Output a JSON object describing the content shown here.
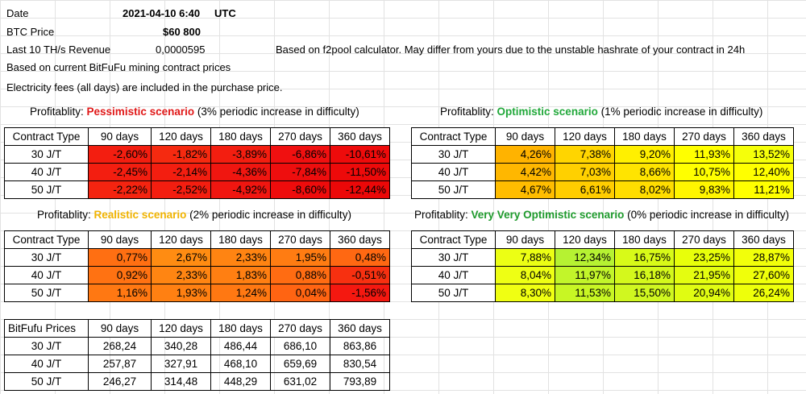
{
  "info": {
    "date_label": "Date",
    "date_value": "2021-04-10 6:40",
    "date_tz": "UTC",
    "btc_label": "BTC Price",
    "btc_value": "$60 800",
    "revenue_label": "Last 10 TH/s Revenue",
    "revenue_value": "0,0000595",
    "revenue_note": "Based on f2pool calculator. May differ from yours due to the unstable hashrate of your contract in 24h",
    "line4": "Based on current BitFuFu mining contract prices",
    "line5": "Electricity fees (all days) are included in the purchase price."
  },
  "captions": {
    "prefix": "Profitablity: ",
    "pess_name": "Pessimistic scenario",
    "pess_suffix": " (3% periodic increase in difficulty)",
    "opt_name": "Optimistic scenario",
    "opt_suffix": " (1% periodic increase in difficulty)",
    "real_name": "Realistic scenario",
    "real_suffix": " (2% periodic increase in difficulty)",
    "vvo_name": "Very Very Optimistic scenario",
    "vvo_suffix": " (0% periodic increase in difficulty)"
  },
  "columns": [
    "90 days",
    "120 days",
    "180 days",
    "270 days",
    "360 days"
  ],
  "contract_header": "Contract Type",
  "prices_header": "BitFufu Prices",
  "rows": [
    "30 J/T",
    "40 J/T",
    "50 J/T"
  ],
  "tables": {
    "pessimistic": [
      [
        "-2,60%",
        "-1,82%",
        "-3,89%",
        "-6,86%",
        "-10,61%"
      ],
      [
        "-2,45%",
        "-2,14%",
        "-4,36%",
        "-7,84%",
        "-11,50%"
      ],
      [
        "-2,22%",
        "-2,52%",
        "-4,92%",
        "-8,60%",
        "-12,44%"
      ]
    ],
    "optimistic": [
      [
        "4,26%",
        "7,38%",
        "9,20%",
        "11,93%",
        "13,52%"
      ],
      [
        "4,42%",
        "7,03%",
        "8,66%",
        "10,75%",
        "12,40%"
      ],
      [
        "4,67%",
        "6,61%",
        "8,02%",
        "9,83%",
        "11,21%"
      ]
    ],
    "realistic": [
      [
        "0,77%",
        "2,67%",
        "2,33%",
        "1,95%",
        "0,48%"
      ],
      [
        "0,92%",
        "2,33%",
        "1,83%",
        "0,88%",
        "-0,51%"
      ],
      [
        "1,16%",
        "1,93%",
        "1,24%",
        "0,04%",
        "-1,56%"
      ]
    ],
    "vvo": [
      [
        "7,88%",
        "12,34%",
        "16,75%",
        "23,25%",
        "28,87%"
      ],
      [
        "8,04%",
        "11,97%",
        "16,18%",
        "21,95%",
        "27,60%"
      ],
      [
        "8,30%",
        "11,53%",
        "15,50%",
        "20,94%",
        "26,24%"
      ]
    ],
    "prices": [
      [
        "268,24",
        "340,28",
        "486,44",
        "686,10",
        "863,86"
      ],
      [
        "257,87",
        "327,91",
        "468,10",
        "659,69",
        "830,54"
      ],
      [
        "246,27",
        "314,48",
        "448,29",
        "631,02",
        "793,89"
      ]
    ]
  },
  "colors": {
    "pessimistic": [
      [
        "#f31e10",
        "#f52a10",
        "#f31e10",
        "#f01010",
        "#ee0b0b"
      ],
      [
        "#f31e10",
        "#f31e10",
        "#f01610",
        "#ee0e0e",
        "#ed0a0a"
      ],
      [
        "#f42410",
        "#f31e10",
        "#f01610",
        "#ee0c0c",
        "#ec0808"
      ]
    ],
    "optimistic": [
      [
        "#ffb300",
        "#ffd500",
        "#fff000",
        "#ffff00",
        "#f5ff0a"
      ],
      [
        "#ffb700",
        "#ffd000",
        "#ffe400",
        "#ffff00",
        "#ffff00"
      ],
      [
        "#ffbd00",
        "#ffcd00",
        "#ffdd00",
        "#fff500",
        "#ffff00"
      ]
    ],
    "realistic": [
      [
        "#ff6f12",
        "#ff8c12",
        "#ff8412",
        "#ff7c12",
        "#ff6812"
      ],
      [
        "#ff7212",
        "#ff8512",
        "#ff7f12",
        "#ff6c12",
        "#f73010"
      ],
      [
        "#ff7812",
        "#ff8012",
        "#ff7812",
        "#ff6412",
        "#f41810"
      ]
    ],
    "vvo": [
      [
        "#ecff14",
        "#b6f232",
        "#d8fa18",
        "#e8ff0a",
        "#f2ff0a"
      ],
      [
        "#eeff14",
        "#c2f52a",
        "#d4f81c",
        "#e4fd10",
        "#f0ff0a"
      ],
      [
        "#f0ff12",
        "#c8f624",
        "#d0f720",
        "#e0fc12",
        "#eeff0a"
      ]
    ]
  }
}
